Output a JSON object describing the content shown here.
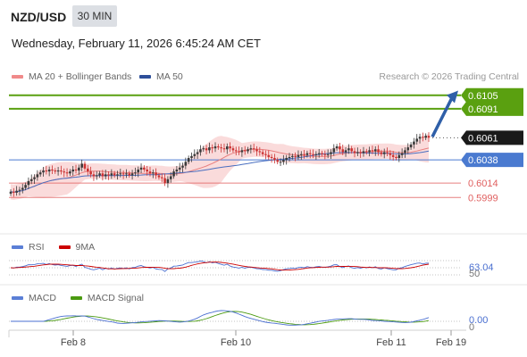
{
  "header": {
    "symbol": "NZD/USD",
    "timeframe": "30 MIN",
    "datetime": "Wednesday, February 11, 2026 6:45:24 AM CET"
  },
  "legend": {
    "ma20": "MA 20 + Bollinger Bands",
    "ma50": "MA 50",
    "credit": "Research © 2026 Trading Central"
  },
  "colors": {
    "up": "#3a3a3a",
    "down": "#cc3333",
    "band": "#f8c8c8",
    "ma20": "#e88080",
    "ma50": "#4a6fc0",
    "target": "#5aa010",
    "pivot": "#4a7ad0",
    "support": "#e06060",
    "rsi": "#4a6fd0",
    "rsi_ma": "#cc0000",
    "macd": "#4a6fd0",
    "macd_signal": "#4a9a10",
    "arrow": "#2f5fa8"
  },
  "chart_data": [
    {
      "type": "candlestick",
      "x_ticks": [
        "Feb 8",
        "Feb 10",
        "Feb 11",
        "Feb 19"
      ],
      "ylim": [
        0.5965,
        0.6115
      ],
      "levels": [
        {
          "value": 0.6105,
          "label": "0.6105",
          "kind": "target"
        },
        {
          "value": 0.6091,
          "label": "0.6091",
          "kind": "target"
        },
        {
          "value": 0.6061,
          "label": "0.6061",
          "kind": "last"
        },
        {
          "value": 0.6038,
          "label": "0.6038",
          "kind": "pivot"
        },
        {
          "value": 0.6014,
          "label": "0.6014",
          "kind": "support"
        },
        {
          "value": 0.5999,
          "label": "0.5999",
          "kind": "support"
        }
      ],
      "close": [
        0.6005,
        0.6004,
        0.6006,
        0.6007,
        0.6009,
        0.6012,
        0.6016,
        0.6018,
        0.602,
        0.6023,
        0.6025,
        0.6027,
        0.6026,
        0.6028,
        0.6027,
        0.6026,
        0.6027,
        0.6026,
        0.6025,
        0.6024,
        0.6026,
        0.6028,
        0.6027,
        0.603,
        0.6034,
        0.6029,
        0.6026,
        0.6023,
        0.6021,
        0.6022,
        0.6024,
        0.6021,
        0.6023,
        0.6022,
        0.6024,
        0.6022,
        0.6023,
        0.6024,
        0.6023,
        0.6024,
        0.6022,
        0.6024,
        0.6025,
        0.6028,
        0.603,
        0.6028,
        0.6026,
        0.6024,
        0.6025,
        0.6022,
        0.602,
        0.6019,
        0.6014,
        0.6018,
        0.6021,
        0.6026,
        0.6028,
        0.603,
        0.6032,
        0.6036,
        0.604,
        0.6042,
        0.6044,
        0.6046,
        0.6049,
        0.605,
        0.6048,
        0.6051,
        0.605,
        0.6052,
        0.6051,
        0.605,
        0.6049,
        0.6052,
        0.605,
        0.6048,
        0.6047,
        0.6046,
        0.6048,
        0.6047,
        0.6049,
        0.605,
        0.6049,
        0.6047,
        0.6046,
        0.6044,
        0.6043,
        0.6041,
        0.604,
        0.6038,
        0.6036,
        0.6036,
        0.6038,
        0.604,
        0.6041,
        0.6042,
        0.6041,
        0.6043,
        0.6044,
        0.6043,
        0.6045,
        0.6044,
        0.6043,
        0.6044,
        0.6045,
        0.6044,
        0.6043,
        0.6044,
        0.6046,
        0.605,
        0.6052,
        0.6049,
        0.6046,
        0.6048,
        0.605,
        0.6047,
        0.6045,
        0.6046,
        0.6045,
        0.6047,
        0.6046,
        0.6048,
        0.6047,
        0.6049,
        0.6046,
        0.6044,
        0.6046,
        0.6045,
        0.6043,
        0.6041,
        0.604,
        0.6043,
        0.6045,
        0.6048,
        0.6051,
        0.6054,
        0.6057,
        0.606,
        0.6062,
        0.6061,
        0.6063,
        0.6061
      ],
      "rsi": {
        "levels": [
          70,
          50,
          30
        ],
        "last": "63.04"
      },
      "macd": {
        "last": "0.00",
        "zero": "0"
      }
    }
  ],
  "panels": {
    "rsi": {
      "label": "RSI",
      "ma": "9MA"
    },
    "macd": {
      "label": "MACD",
      "signal": "MACD Signal"
    }
  }
}
